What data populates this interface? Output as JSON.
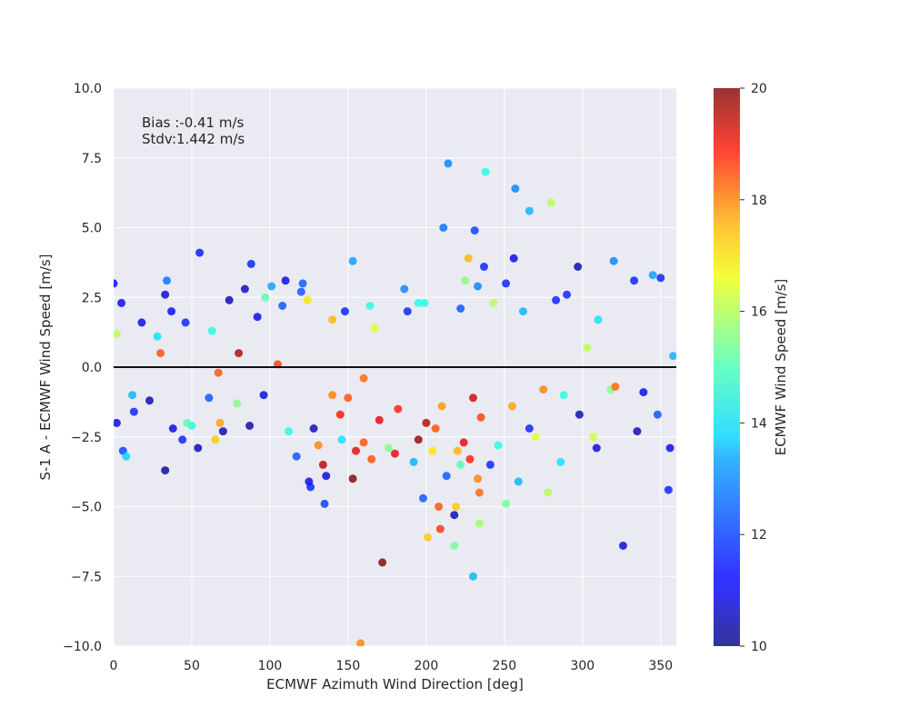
{
  "chart_data": {
    "type": "scatter",
    "xlabel": "ECMWF Azimuth Wind Direction [deg]",
    "ylabel": "S-1 A - ECMWF Wind Speed [m/s]",
    "xlim": [
      0,
      360
    ],
    "ylim": [
      -10,
      10
    ],
    "x_ticks": [
      "0",
      "50",
      "100",
      "150",
      "200",
      "250",
      "300",
      "350"
    ],
    "x_tick_values": [
      0,
      50,
      100,
      150,
      200,
      250,
      300,
      350
    ],
    "y_ticks": [
      "10.0",
      "7.5",
      "5.0",
      "2.5",
      "0.0",
      "−2.5",
      "−5.0",
      "−7.5",
      "−10.0"
    ],
    "y_tick_values": [
      10,
      7.5,
      5,
      2.5,
      0,
      -2.5,
      -5,
      -7.5,
      -10
    ],
    "grid": true,
    "background": "#eaeaf2",
    "reference_line_y": 0,
    "annotations": [
      "Bias :-0.41 m/s",
      "Stdv:1.442 m/s"
    ],
    "colorbar": {
      "label": "ECMWF Wind Speed [m/s]",
      "colormap": "jet",
      "range": [
        10,
        20
      ],
      "ticks": [
        "10",
        "12",
        "14",
        "16",
        "18",
        "20"
      ],
      "tick_values": [
        10,
        12,
        14,
        16,
        18,
        20
      ]
    },
    "points": [
      [
        0,
        3.0,
        11.2
      ],
      [
        5,
        2.3,
        11.0
      ],
      [
        6,
        -3.0,
        11.8
      ],
      [
        8,
        -3.2,
        13.3
      ],
      [
        2,
        -2.0,
        11.0
      ],
      [
        13,
        -1.6,
        11.5
      ],
      [
        33,
        2.6,
        10.8
      ],
      [
        34,
        3.1,
        12.3
      ],
      [
        33,
        -3.7,
        10.2
      ],
      [
        37,
        2.0,
        11.1
      ],
      [
        55,
        4.1,
        11.4
      ],
      [
        50,
        -2.1,
        14.0
      ],
      [
        44,
        -2.6,
        11.5
      ],
      [
        54,
        -2.9,
        10.5
      ],
      [
        65,
        -2.6,
        16.8
      ],
      [
        68,
        -2.0,
        17.2
      ],
      [
        70,
        -2.3,
        10.5
      ],
      [
        88,
        3.7,
        11.5
      ],
      [
        87,
        -2.1,
        10.3
      ],
      [
        84,
        2.8,
        10.5
      ],
      [
        97,
        2.5,
        14.5
      ],
      [
        101,
        2.9,
        12.8
      ],
      [
        110,
        3.1,
        11.0
      ],
      [
        120,
        2.7,
        12.0
      ],
      [
        121,
        3.0,
        12.1
      ],
      [
        117,
        -3.2,
        12.0
      ],
      [
        125,
        -4.1,
        11.0
      ],
      [
        126,
        -4.3,
        11.5
      ],
      [
        131,
        -2.8,
        17.5
      ],
      [
        134,
        -3.5,
        19.5
      ],
      [
        136,
        -3.9,
        10.8
      ],
      [
        135,
        -4.9,
        11.8
      ],
      [
        153,
        3.8,
        12.8
      ],
      [
        155,
        -3.0,
        19.0
      ],
      [
        153,
        -4.0,
        20.0
      ],
      [
        158,
        -9.9,
        17.5
      ],
      [
        164,
        2.2,
        14.0
      ],
      [
        172,
        -7.0,
        20.0
      ],
      [
        165,
        -3.3,
        18.0
      ],
      [
        180,
        -3.1,
        19.0
      ],
      [
        186,
        2.8,
        12.5
      ],
      [
        195,
        2.3,
        14.0
      ],
      [
        199,
        2.3,
        14.0
      ],
      [
        198,
        -4.7,
        12.0
      ],
      [
        201,
        -6.1,
        16.8
      ],
      [
        208,
        -5.0,
        18.0
      ],
      [
        209,
        -5.8,
        18.3
      ],
      [
        214,
        7.3,
        12.5
      ],
      [
        211,
        5.0,
        12.3
      ],
      [
        218,
        -5.3,
        10.5
      ],
      [
        218,
        -6.4,
        14.8
      ],
      [
        219,
        -5.0,
        16.8
      ],
      [
        225,
        3.1,
        15.0
      ],
      [
        227,
        3.9,
        17.0
      ],
      [
        230,
        -7.5,
        13.0
      ],
      [
        231,
        4.9,
        11.8
      ],
      [
        233,
        2.9,
        12.5
      ],
      [
        234,
        -5.6,
        15.3
      ],
      [
        238,
        7.0,
        14.0
      ],
      [
        237,
        3.6,
        11.5
      ],
      [
        234,
        -4.5,
        17.8
      ],
      [
        233,
        -4.0,
        17.5
      ],
      [
        251,
        3.0,
        11.5
      ],
      [
        251,
        -4.9,
        14.8
      ],
      [
        256,
        3.9,
        11.0
      ],
      [
        257,
        6.4,
        12.5
      ],
      [
        259,
        -4.1,
        13.0
      ],
      [
        266,
        5.6,
        13.0
      ],
      [
        270,
        -2.5,
        16.0
      ],
      [
        278,
        -4.5,
        15.5
      ],
      [
        280,
        5.9,
        15.5
      ],
      [
        286,
        -3.4,
        13.5
      ],
      [
        290,
        2.6,
        11.5
      ],
      [
        297,
        3.6,
        10.5
      ],
      [
        307,
        -2.5,
        15.8
      ],
      [
        309,
        -2.9,
        10.8
      ],
      [
        320,
        3.8,
        12.5
      ],
      [
        326,
        -6.4,
        10.8
      ],
      [
        333,
        3.1,
        11.5
      ],
      [
        335,
        -2.3,
        10.5
      ],
      [
        345,
        3.3,
        12.8
      ],
      [
        350,
        3.2,
        11.5
      ],
      [
        355,
        -4.4,
        11.5
      ],
      [
        356,
        -2.9,
        11.0
      ],
      [
        348,
        -1.7,
        12.0
      ],
      [
        310,
        1.7,
        13.5
      ],
      [
        318,
        -0.8,
        15.0
      ],
      [
        321,
        -0.7,
        17.8
      ],
      [
        298,
        -1.7,
        10.5
      ],
      [
        283,
        2.4,
        11.5
      ],
      [
        262,
        2.0,
        13.0
      ],
      [
        243,
        2.3,
        15.5
      ],
      [
        222,
        2.1,
        12.0
      ],
      [
        188,
        2.0,
        11.5
      ],
      [
        167,
        1.4,
        16.0
      ],
      [
        148,
        2.0,
        11.5
      ],
      [
        140,
        1.7,
        17.0
      ],
      [
        124,
        2.4,
        16.5
      ],
      [
        108,
        2.2,
        12.0
      ],
      [
        92,
        1.8,
        11.0
      ],
      [
        74,
        2.4,
        10.5
      ],
      [
        63,
        1.3,
        14.0
      ],
      [
        46,
        1.6,
        11.5
      ],
      [
        28,
        1.1,
        13.5
      ],
      [
        18,
        1.6,
        11.0
      ],
      [
        2,
        1.2,
        15.5
      ],
      [
        12,
        -1.0,
        13.0
      ],
      [
        23,
        -1.2,
        10.5
      ],
      [
        38,
        -2.2,
        11.0
      ],
      [
        47,
        -2.0,
        14.5
      ],
      [
        61,
        -1.1,
        12.0
      ],
      [
        79,
        -1.3,
        15.0
      ],
      [
        96,
        -1.0,
        11.0
      ],
      [
        112,
        -2.3,
        14.0
      ],
      [
        128,
        -2.2,
        10.5
      ],
      [
        146,
        -2.6,
        13.5
      ],
      [
        160,
        -2.7,
        18.0
      ],
      [
        176,
        -2.9,
        15.0
      ],
      [
        192,
        -3.4,
        13.0
      ],
      [
        204,
        -3.0,
        16.5
      ],
      [
        213,
        -3.9,
        12.0
      ],
      [
        222,
        -3.5,
        14.5
      ],
      [
        228,
        -3.3,
        18.5
      ],
      [
        241,
        -3.5,
        11.5
      ],
      [
        246,
        -2.8,
        14.0
      ],
      [
        266,
        -2.2,
        11.5
      ],
      [
        288,
        -1.0,
        14.0
      ],
      [
        303,
        0.7,
        15.5
      ],
      [
        339,
        -0.9,
        11.0
      ],
      [
        358,
        0.4,
        13.0
      ],
      [
        200,
        -2.0,
        19.5
      ],
      [
        224,
        -2.7,
        19.0
      ],
      [
        206,
        -2.2,
        18.0
      ],
      [
        182,
        -1.5,
        18.5
      ],
      [
        150,
        -1.1,
        18.0
      ],
      [
        140,
        -1.0,
        17.5
      ],
      [
        160,
        -0.4,
        17.8
      ],
      [
        210,
        -1.4,
        17.3
      ],
      [
        235,
        -1.8,
        18.2
      ],
      [
        80,
        0.5,
        19.5
      ],
      [
        30,
        0.5,
        18.0
      ],
      [
        67,
        -0.2,
        18.0
      ],
      [
        105,
        0.1,
        18.2
      ],
      [
        275,
        -0.8,
        17.5
      ],
      [
        230,
        -1.1,
        19.2
      ],
      [
        195,
        -2.6,
        19.8
      ],
      [
        170,
        -1.9,
        19.0
      ],
      [
        145,
        -1.7,
        18.6
      ],
      [
        220,
        -3.0,
        17.0
      ],
      [
        255,
        -1.4,
        17.2
      ]
    ]
  }
}
